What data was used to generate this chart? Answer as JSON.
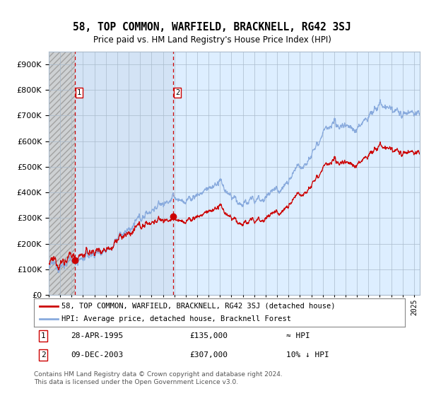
{
  "title": "58, TOP COMMON, WARFIELD, BRACKNELL, RG42 3SJ",
  "subtitle": "Price paid vs. HM Land Registry's House Price Index (HPI)",
  "legend_line1": "58, TOP COMMON, WARFIELD, BRACKNELL, RG42 3SJ (detached house)",
  "legend_line2": "HPI: Average price, detached house, Bracknell Forest",
  "annotation1_date": "28-APR-1995",
  "annotation1_price": "£135,000",
  "annotation1_hpi": "≈ HPI",
  "annotation2_date": "09-DEC-2003",
  "annotation2_price": "£307,000",
  "annotation2_hpi": "10% ↓ HPI",
  "sale1_year": 1995.32,
  "sale1_price": 135000,
  "sale2_year": 2003.92,
  "sale2_price": 307000,
  "red_color": "#cc0000",
  "blue_color": "#88aadd",
  "background_color": "#ffffff",
  "plot_bg_color": "#ddeeff",
  "hatch_color": "#bbbbcc",
  "grid_color": "#aabbcc",
  "copyright_text": "Contains HM Land Registry data © Crown copyright and database right 2024.\nThis data is licensed under the Open Government Licence v3.0.",
  "ylim": [
    0,
    950000
  ],
  "xlim_start": 1993.0,
  "xlim_end": 2025.5
}
